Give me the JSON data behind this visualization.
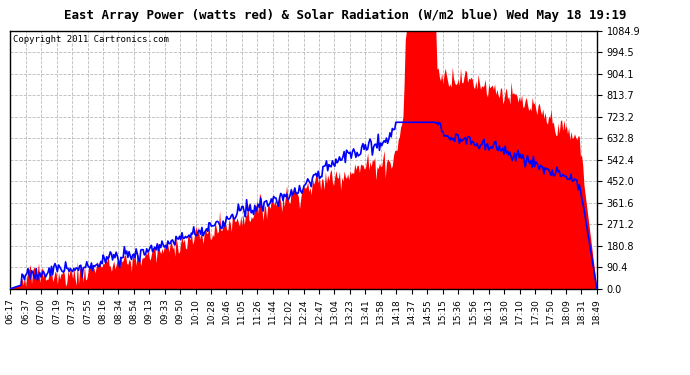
{
  "title": "East Array Power (watts red) & Solar Radiation (W/m2 blue) Wed May 18 19:19",
  "copyright": "Copyright 2011 Cartronics.com",
  "background_color": "#ffffff",
  "plot_bg_color": "#ffffff",
  "grid_color": "#aaaaaa",
  "yticks": [
    0.0,
    90.4,
    180.8,
    271.2,
    361.6,
    452.0,
    542.4,
    632.8,
    723.2,
    813.7,
    904.1,
    994.5,
    1084.9
  ],
  "ymax": 1084.9,
  "ymin": 0.0,
  "xtick_labels": [
    "06:17",
    "06:37",
    "07:00",
    "07:19",
    "07:37",
    "07:55",
    "08:16",
    "08:34",
    "08:54",
    "09:13",
    "09:33",
    "09:50",
    "10:10",
    "10:28",
    "10:46",
    "11:05",
    "11:26",
    "11:44",
    "12:02",
    "12:24",
    "12:47",
    "13:04",
    "13:23",
    "13:41",
    "13:58",
    "14:18",
    "14:37",
    "14:55",
    "15:15",
    "15:36",
    "15:56",
    "16:13",
    "16:30",
    "17:10",
    "17:30",
    "17:50",
    "18:09",
    "18:31",
    "18:49"
  ],
  "power_color": "#ff0000",
  "radiation_color": "#0000ff",
  "title_fontsize": 9,
  "axis_fontsize": 7,
  "copyright_fontsize": 6.5
}
